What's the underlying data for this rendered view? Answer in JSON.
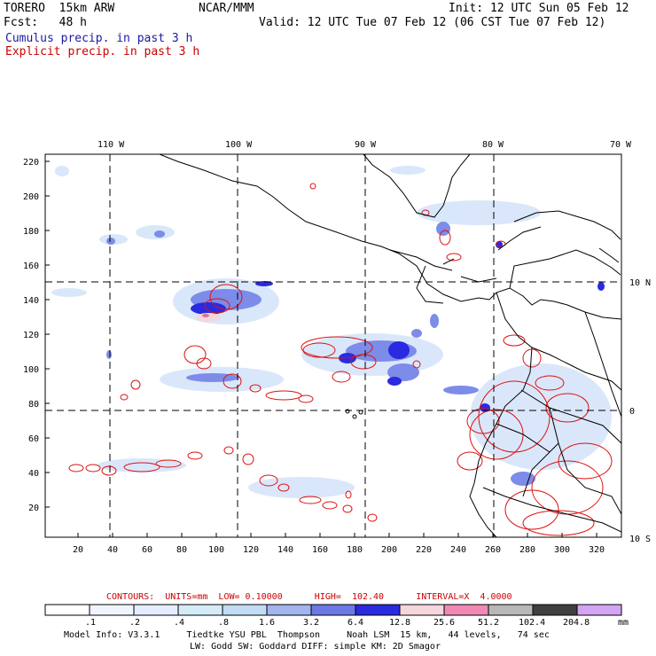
{
  "header": {
    "model": "TORERO  15km ARW",
    "center": "NCAR/MMM",
    "init": "Init: 12 UTC Sun 05 Feb 12",
    "fcst": "Fcst:   48 h",
    "valid": "Valid: 12 UTC Tue 07 Feb 12 (06 CST Tue 07 Feb 12)",
    "legend_cumulus": "Cumulus precip. in past 3 h",
    "legend_explicit": "Explicit precip. in past 3 h"
  },
  "map": {
    "lon_labels": [
      "110 W",
      "100 W",
      "90 W",
      "80 W",
      "70 W"
    ],
    "lat_labels": [
      "10 N",
      "0",
      "10 S"
    ],
    "y_ticks": [
      "220",
      "200",
      "180",
      "160",
      "140",
      "120",
      "100",
      "80",
      "60",
      "40",
      "20"
    ],
    "x_ticks": [
      "20",
      "40",
      "60",
      "80",
      "100",
      "120",
      "140",
      "160",
      "180",
      "200",
      "220",
      "240",
      "260",
      "280",
      "300",
      "320"
    ]
  },
  "contours_line": {
    "label": "CONTOURS:  UNITS=mm  LOW= 0.10000      HIGH=  102.40      INTERVAL=X  4.0000"
  },
  "colorbar": {
    "labels": [
      ".1",
      ".2",
      ".4",
      ".8",
      "1.6",
      "3.2",
      "6.4",
      "12.8",
      "25.6",
      "51.2",
      "102.4",
      "204.8"
    ],
    "unit": "mm",
    "colors": [
      "#ffffff",
      "#f0f5ff",
      "#e4eeff",
      "#d4ecf8",
      "#c2dcf4",
      "#a4b4ee",
      "#6c78e6",
      "#2a2ae0",
      "#f4d6dc",
      "#f08ab4",
      "#b8b8b8",
      "#404040",
      "#d4a4f4"
    ]
  },
  "model_info": {
    "line1": "Model Info: V3.3.1     Tiedtke YSU PBL  Thompson     Noah LSM  15 km,   44 levels,   74 sec",
    "line2": "LW: Godd SW: Goddard DIFF: simple KM: 2D Smagor"
  }
}
